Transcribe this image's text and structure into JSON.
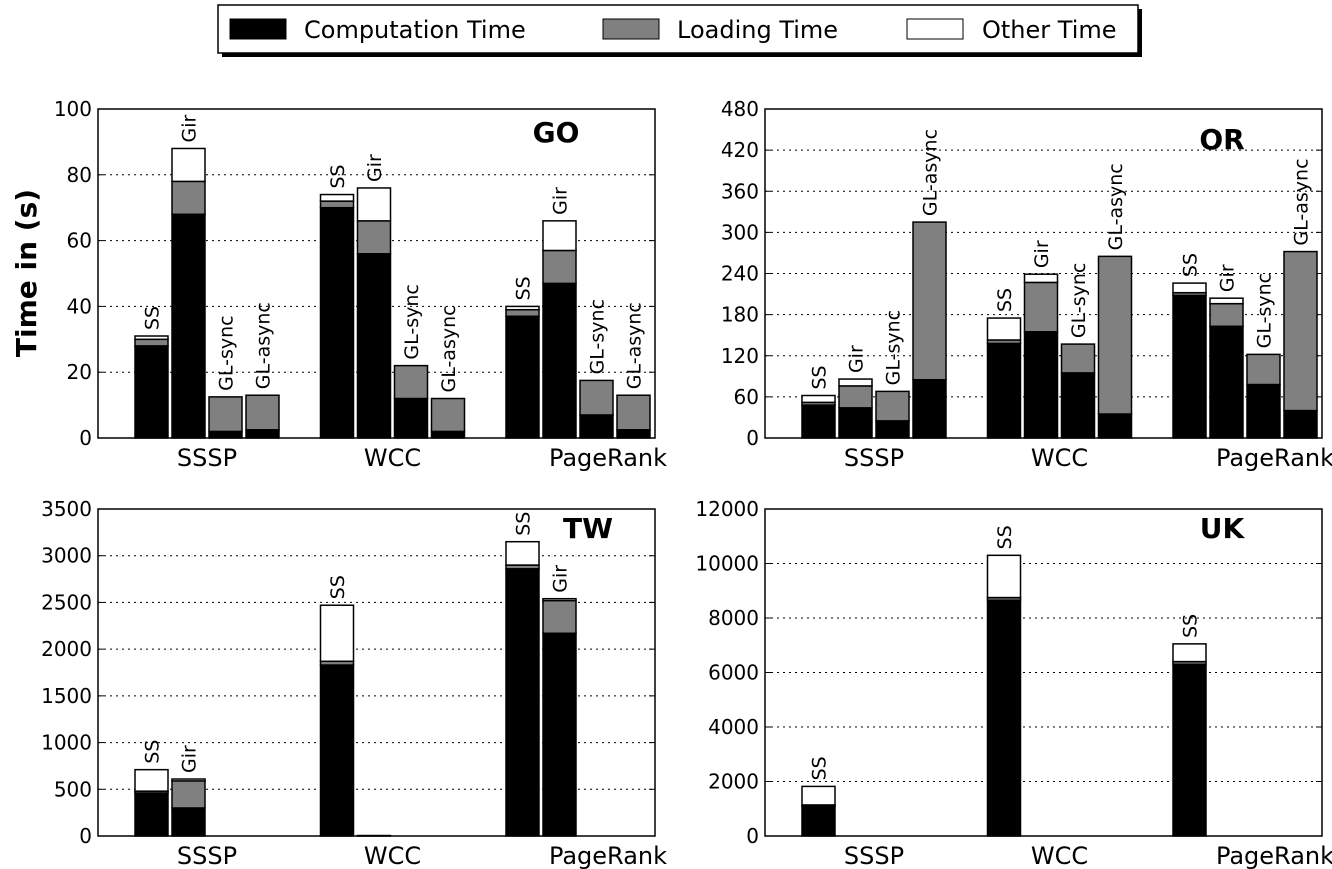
{
  "figure": {
    "ylabel": "Time in (s)",
    "legend": [
      "Computation Time",
      "Loading Time",
      "Other Time"
    ],
    "colors": {
      "computation": "#000000",
      "loading": "#808080",
      "other": "#ffffff"
    }
  },
  "chart_data": [
    {
      "type": "bar",
      "stacked": true,
      "title": "GO",
      "categories": [
        "SSSP",
        "WCC",
        "PageRank"
      ],
      "ylim": [
        0,
        100
      ],
      "yticks": [
        0,
        20,
        40,
        60,
        80,
        100
      ],
      "grid": true,
      "systems": [
        "SS",
        "Gir",
        "GL-sync",
        "GL-async"
      ],
      "series_names": [
        "Computation Time",
        "Loading Time",
        "Other Time"
      ],
      "groups": [
        [
          {
            "label": "SS",
            "values": [
              28,
              2,
              1
            ]
          },
          {
            "label": "Gir",
            "values": [
              68,
              10,
              10
            ]
          },
          {
            "label": "GL-sync",
            "values": [
              2,
              10.5,
              0
            ]
          },
          {
            "label": "GL-async",
            "values": [
              2.5,
              10.5,
              0
            ]
          }
        ],
        [
          {
            "label": "SS",
            "values": [
              70,
              2,
              2
            ]
          },
          {
            "label": "Gir",
            "values": [
              56,
              10,
              10
            ]
          },
          {
            "label": "GL-sync",
            "values": [
              12,
              10,
              0
            ]
          },
          {
            "label": "GL-async",
            "values": [
              2,
              10,
              0
            ]
          }
        ],
        [
          {
            "label": "SS",
            "values": [
              37,
              2,
              1
            ]
          },
          {
            "label": "Gir",
            "values": [
              47,
              10,
              9
            ]
          },
          {
            "label": "GL-sync",
            "values": [
              7,
              10.5,
              0
            ]
          },
          {
            "label": "GL-async",
            "values": [
              2.5,
              10.5,
              0
            ]
          }
        ]
      ]
    },
    {
      "type": "bar",
      "stacked": true,
      "title": "OR",
      "categories": [
        "SSSP",
        "WCC",
        "PageRank"
      ],
      "ylim": [
        0,
        480
      ],
      "yticks": [
        0,
        60,
        120,
        180,
        240,
        300,
        360,
        420,
        480
      ],
      "grid": true,
      "systems": [
        "SS",
        "Gir",
        "GL-sync",
        "GL-async"
      ],
      "series_names": [
        "Computation Time",
        "Loading Time",
        "Other Time"
      ],
      "groups": [
        [
          {
            "label": "SS",
            "values": [
              48,
              4,
              10
            ]
          },
          {
            "label": "Gir",
            "values": [
              44,
              32,
              10
            ]
          },
          {
            "label": "GL-sync",
            "values": [
              25,
              43,
              0
            ]
          },
          {
            "label": "GL-async",
            "values": [
              85,
              230,
              0
            ]
          }
        ],
        [
          {
            "label": "SS",
            "values": [
              138,
              5,
              32
            ]
          },
          {
            "label": "Gir",
            "values": [
              155,
              72,
              12
            ]
          },
          {
            "label": "GL-sync",
            "values": [
              95,
              42,
              0
            ]
          },
          {
            "label": "GL-async",
            "values": [
              35,
              230,
              0
            ]
          }
        ],
        [
          {
            "label": "SS",
            "values": [
              208,
              4,
              14
            ]
          },
          {
            "label": "Gir",
            "values": [
              163,
              33,
              8
            ]
          },
          {
            "label": "GL-sync",
            "values": [
              78,
              44,
              0
            ]
          },
          {
            "label": "GL-async",
            "values": [
              40,
              232,
              0
            ]
          }
        ]
      ]
    },
    {
      "type": "bar",
      "stacked": true,
      "title": "TW",
      "categories": [
        "SSSP",
        "WCC",
        "PageRank"
      ],
      "ylim": [
        0,
        3500
      ],
      "yticks": [
        0,
        500,
        1000,
        1500,
        2000,
        2500,
        3000,
        3500
      ],
      "grid": true,
      "systems": [
        "SS",
        "Gir",
        "GL-sync",
        "GL-async"
      ],
      "series_names": [
        "Computation Time",
        "Loading Time",
        "Other Time"
      ],
      "groups": [
        [
          {
            "label": "SS",
            "values": [
              460,
              20,
              230
            ]
          },
          {
            "label": "Gir",
            "values": [
              300,
              290,
              20
            ]
          },
          {
            "label": "",
            "values": [
              0,
              0,
              0
            ]
          },
          {
            "label": "",
            "values": [
              0,
              0,
              0
            ]
          }
        ],
        [
          {
            "label": "SS",
            "values": [
              1830,
              40,
              600
            ]
          },
          {
            "label": "",
            "values": [
              5,
              0,
              0
            ]
          },
          {
            "label": "",
            "values": [
              0,
              0,
              0
            ]
          },
          {
            "label": "",
            "values": [
              0,
              0,
              0
            ]
          }
        ],
        [
          {
            "label": "SS",
            "values": [
              2860,
              40,
              250
            ]
          },
          {
            "label": "Gir",
            "values": [
              2170,
              350,
              20
            ]
          },
          {
            "label": "",
            "values": [
              0,
              0,
              0
            ]
          },
          {
            "label": "",
            "values": [
              0,
              0,
              0
            ]
          }
        ]
      ]
    },
    {
      "type": "bar",
      "stacked": true,
      "title": "UK",
      "categories": [
        "SSSP",
        "WCC",
        "PageRank"
      ],
      "ylim": [
        0,
        12000
      ],
      "yticks": [
        0,
        2000,
        4000,
        6000,
        8000,
        10000,
        12000
      ],
      "grid": true,
      "systems": [
        "SS",
        "Gir",
        "GL-sync",
        "GL-async"
      ],
      "series_names": [
        "Computation Time",
        "Loading Time",
        "Other Time"
      ],
      "groups": [
        [
          {
            "label": "SS",
            "values": [
              1100,
              40,
              680
            ]
          },
          {
            "label": "",
            "values": [
              0,
              0,
              0
            ]
          },
          {
            "label": "",
            "values": [
              0,
              0,
              0
            ]
          },
          {
            "label": "",
            "values": [
              0,
              0,
              0
            ]
          }
        ],
        [
          {
            "label": "SS",
            "values": [
              8650,
              100,
              1550
            ]
          },
          {
            "label": "",
            "values": [
              0,
              0,
              0
            ]
          },
          {
            "label": "",
            "values": [
              0,
              0,
              0
            ]
          },
          {
            "label": "",
            "values": [
              0,
              0,
              0
            ]
          }
        ],
        [
          {
            "label": "SS",
            "values": [
              6300,
              100,
              650
            ]
          },
          {
            "label": "",
            "values": [
              0,
              0,
              0
            ]
          },
          {
            "label": "",
            "values": [
              0,
              0,
              0
            ]
          },
          {
            "label": "",
            "values": [
              0,
              0,
              0
            ]
          }
        ]
      ]
    }
  ]
}
